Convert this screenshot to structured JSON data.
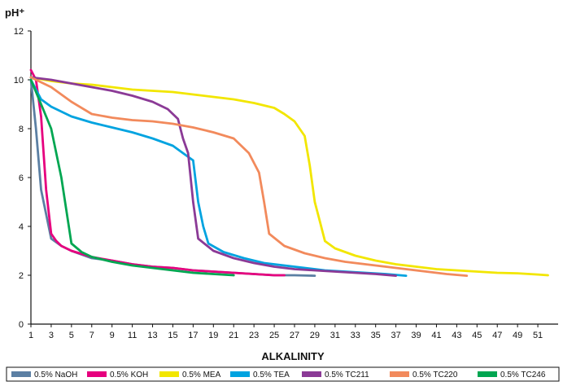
{
  "chart_data": {
    "type": "line",
    "title": "",
    "xlabel": "ALKALINITY",
    "ylabel": "pH⁺",
    "xlim": [
      1,
      53
    ],
    "ylim": [
      0,
      12
    ],
    "x_ticks": [
      1,
      3,
      5,
      7,
      9,
      11,
      13,
      15,
      17,
      19,
      21,
      23,
      25,
      27,
      29,
      31,
      33,
      35,
      37,
      39,
      41,
      43,
      45,
      47,
      49,
      51
    ],
    "y_ticks": [
      0,
      2,
      4,
      6,
      8,
      10,
      12
    ],
    "grid": false,
    "legend_position": "bottom",
    "series": [
      {
        "name": "0.5% NaOH",
        "color": "#5b7fa3",
        "points": [
          [
            1,
            10.0
          ],
          [
            1.5,
            8.0
          ],
          [
            2,
            5.5
          ],
          [
            2.5,
            4.5
          ],
          [
            3,
            3.5
          ],
          [
            4,
            3.2
          ],
          [
            5,
            3.0
          ],
          [
            7,
            2.7
          ],
          [
            9,
            2.6
          ],
          [
            11,
            2.45
          ],
          [
            13,
            2.35
          ],
          [
            15,
            2.3
          ],
          [
            17,
            2.2
          ],
          [
            19,
            2.15
          ],
          [
            21,
            2.1
          ],
          [
            23,
            2.05
          ],
          [
            25,
            2.0
          ],
          [
            27,
            2.0
          ],
          [
            29,
            1.98
          ]
        ]
      },
      {
        "name": "0.5% KOH",
        "color": "#e6007e",
        "points": [
          [
            1,
            10.4
          ],
          [
            1.5,
            10.0
          ],
          [
            2,
            8.5
          ],
          [
            2.5,
            5.5
          ],
          [
            3,
            3.7
          ],
          [
            3.5,
            3.4
          ],
          [
            4,
            3.2
          ],
          [
            5,
            3.0
          ],
          [
            7,
            2.75
          ],
          [
            9,
            2.6
          ],
          [
            11,
            2.45
          ],
          [
            13,
            2.35
          ],
          [
            15,
            2.3
          ],
          [
            17,
            2.2
          ],
          [
            19,
            2.15
          ],
          [
            21,
            2.1
          ],
          [
            23,
            2.05
          ],
          [
            25,
            2.0
          ],
          [
            26,
            2.0
          ]
        ]
      },
      {
        "name": "0.5% MEA",
        "color": "#f2e600",
        "points": [
          [
            1,
            10.1
          ],
          [
            3,
            9.95
          ],
          [
            5,
            9.85
          ],
          [
            7,
            9.8
          ],
          [
            9,
            9.7
          ],
          [
            11,
            9.6
          ],
          [
            13,
            9.55
          ],
          [
            15,
            9.5
          ],
          [
            17,
            9.4
          ],
          [
            19,
            9.3
          ],
          [
            21,
            9.2
          ],
          [
            23,
            9.05
          ],
          [
            25,
            8.85
          ],
          [
            26,
            8.6
          ],
          [
            27,
            8.3
          ],
          [
            28,
            7.7
          ],
          [
            28.5,
            6.5
          ],
          [
            29,
            5.0
          ],
          [
            29.5,
            4.2
          ],
          [
            30,
            3.4
          ],
          [
            31,
            3.1
          ],
          [
            33,
            2.8
          ],
          [
            35,
            2.6
          ],
          [
            37,
            2.45
          ],
          [
            39,
            2.35
          ],
          [
            41,
            2.25
          ],
          [
            43,
            2.2
          ],
          [
            45,
            2.15
          ],
          [
            47,
            2.1
          ],
          [
            49,
            2.08
          ],
          [
            51,
            2.03
          ],
          [
            52,
            2.0
          ]
        ]
      },
      {
        "name": "0.5% TEA",
        "color": "#00a3e0",
        "points": [
          [
            1,
            10.0
          ],
          [
            2,
            9.2
          ],
          [
            3,
            8.9
          ],
          [
            5,
            8.5
          ],
          [
            7,
            8.25
          ],
          [
            9,
            8.05
          ],
          [
            11,
            7.85
          ],
          [
            13,
            7.6
          ],
          [
            15,
            7.3
          ],
          [
            16,
            7.0
          ],
          [
            17,
            6.7
          ],
          [
            17.5,
            5.0
          ],
          [
            18,
            4.0
          ],
          [
            18.5,
            3.3
          ],
          [
            20,
            2.95
          ],
          [
            22,
            2.7
          ],
          [
            24,
            2.5
          ],
          [
            26,
            2.4
          ],
          [
            28,
            2.3
          ],
          [
            30,
            2.2
          ],
          [
            32,
            2.15
          ],
          [
            34,
            2.1
          ],
          [
            36,
            2.05
          ],
          [
            38,
            1.98
          ]
        ]
      },
      {
        "name": "0.5% TC211",
        "color": "#8b3a96",
        "points": [
          [
            1,
            10.1
          ],
          [
            3,
            10.0
          ],
          [
            5,
            9.85
          ],
          [
            7,
            9.7
          ],
          [
            9,
            9.55
          ],
          [
            11,
            9.35
          ],
          [
            13,
            9.1
          ],
          [
            14.5,
            8.8
          ],
          [
            15.5,
            8.4
          ],
          [
            16,
            7.6
          ],
          [
            16.5,
            7.0
          ],
          [
            17,
            5.0
          ],
          [
            17.5,
            3.5
          ],
          [
            19,
            3.0
          ],
          [
            21,
            2.7
          ],
          [
            23,
            2.5
          ],
          [
            25,
            2.35
          ],
          [
            27,
            2.25
          ],
          [
            29,
            2.2
          ],
          [
            31,
            2.15
          ],
          [
            33,
            2.1
          ],
          [
            35,
            2.05
          ],
          [
            37,
            1.98
          ]
        ]
      },
      {
        "name": "0.5% TC220",
        "color": "#f28a5c",
        "points": [
          [
            1,
            10.1
          ],
          [
            3,
            9.7
          ],
          [
            5,
            9.1
          ],
          [
            7,
            8.6
          ],
          [
            9,
            8.45
          ],
          [
            11,
            8.35
          ],
          [
            13,
            8.3
          ],
          [
            15,
            8.2
          ],
          [
            17,
            8.05
          ],
          [
            19,
            7.85
          ],
          [
            21,
            7.6
          ],
          [
            22.5,
            7.0
          ],
          [
            23.5,
            6.2
          ],
          [
            24,
            5.0
          ],
          [
            24.5,
            3.7
          ],
          [
            26,
            3.2
          ],
          [
            28,
            2.9
          ],
          [
            30,
            2.7
          ],
          [
            32,
            2.55
          ],
          [
            34,
            2.45
          ],
          [
            36,
            2.35
          ],
          [
            38,
            2.25
          ],
          [
            40,
            2.15
          ],
          [
            42,
            2.05
          ],
          [
            44,
            1.98
          ]
        ]
      },
      {
        "name": "0.5% TC246",
        "color": "#00a651",
        "points": [
          [
            1,
            10.0
          ],
          [
            2,
            9.0
          ],
          [
            3,
            8.0
          ],
          [
            4,
            6.0
          ],
          [
            5,
            3.3
          ],
          [
            6,
            2.95
          ],
          [
            7,
            2.75
          ],
          [
            9,
            2.55
          ],
          [
            11,
            2.4
          ],
          [
            13,
            2.3
          ],
          [
            15,
            2.2
          ],
          [
            17,
            2.1
          ],
          [
            19,
            2.05
          ],
          [
            21,
            2.0
          ]
        ]
      }
    ]
  }
}
